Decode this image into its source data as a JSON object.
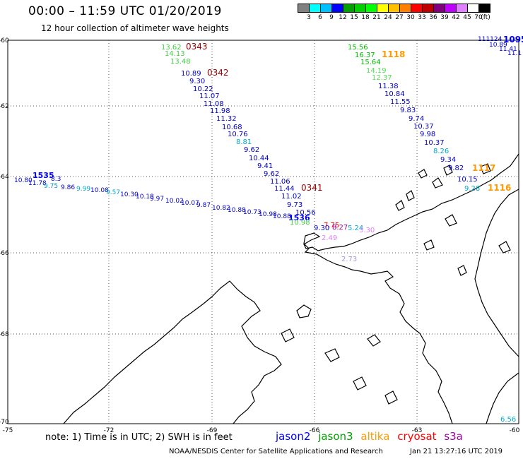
{
  "header": {
    "title": "00:00 – 11:59 UTC 01/20/2019",
    "subtitle": "12 hour collection of altimeter wave heights"
  },
  "legend": {
    "colors": [
      "#808080",
      "#00ffff",
      "#00c0ff",
      "#0000ff",
      "#00a000",
      "#00d000",
      "#00ff00",
      "#ffff00",
      "#ffc000",
      "#ff8000",
      "#ff0000",
      "#c00000",
      "#800080",
      "#c000ff",
      "#e080ff",
      "#ffffff",
      "#000000"
    ],
    "labels": [
      "3",
      "6",
      "9",
      "12",
      "15",
      "18",
      "21",
      "24",
      "27",
      "30",
      "33",
      "36",
      "39",
      "42",
      "45",
      "70",
      "(ft)"
    ]
  },
  "axes": {
    "lat_labels": [
      "-60",
      "-62",
      "-64",
      "-66",
      "-68",
      "-70"
    ],
    "lon_labels": [
      "-75",
      "-72",
      "-69",
      "-66",
      "-63",
      "-60"
    ]
  },
  "tracks": [
    {
      "id": "track-0343",
      "time": "0343",
      "color": "#00dd00",
      "values": [
        "13.62",
        "14.13",
        "13.48"
      ]
    },
    {
      "id": "track-0342",
      "time": "0342",
      "color": "#0000dd",
      "values": [
        "10.89",
        "9.30",
        "10.22",
        "11.07",
        "11.08",
        "11.98",
        "11.32",
        "10.68",
        "10.76",
        "8.81",
        "9.62",
        "10.44",
        "9.41",
        "9.62",
        "11.06",
        "11.44",
        "11.02",
        "9.73",
        "10.56"
      ]
    },
    {
      "id": "track-1118",
      "time": "1118",
      "color": "#00aa00",
      "values": [
        "15.56",
        "16.37",
        "15.64",
        "14.19",
        "12.37",
        "11.38",
        "10.84",
        "11.55",
        "9.83",
        "9.74",
        "10.37",
        "9.98",
        "10.37",
        "8.26",
        "9.34",
        "9.82",
        "10.15",
        "9.28"
      ]
    },
    {
      "id": "track-0341",
      "time": "0341",
      "values": []
    },
    {
      "id": "track-1116",
      "time": "1116",
      "values": []
    },
    {
      "id": "track-1117",
      "time": "1117",
      "values": []
    },
    {
      "id": "track-1095",
      "time": "1095",
      "values": []
    }
  ],
  "extra_values": [
    "9.30",
    "7.75",
    "8.27",
    "5.24",
    "3.30",
    "2.49",
    "2.73",
    "6.56"
  ],
  "footer": {
    "note": "note: 1) Time is in UTC; 2) SWH is in feet",
    "satellites": [
      {
        "name": "jason2",
        "color": "#0000ff"
      },
      {
        "name": "jason3",
        "color": "#00a000"
      },
      {
        "name": "altika",
        "color": "#ff9900"
      },
      {
        "name": "cryosat",
        "color": "#ff0000"
      },
      {
        "name": "s3a",
        "color": "#a000a0"
      }
    ],
    "credit": "NOAA/NESDIS Center for Satellite Applications and Research",
    "timestamp": "Jan 21 13:27:16 UTC 2019"
  }
}
